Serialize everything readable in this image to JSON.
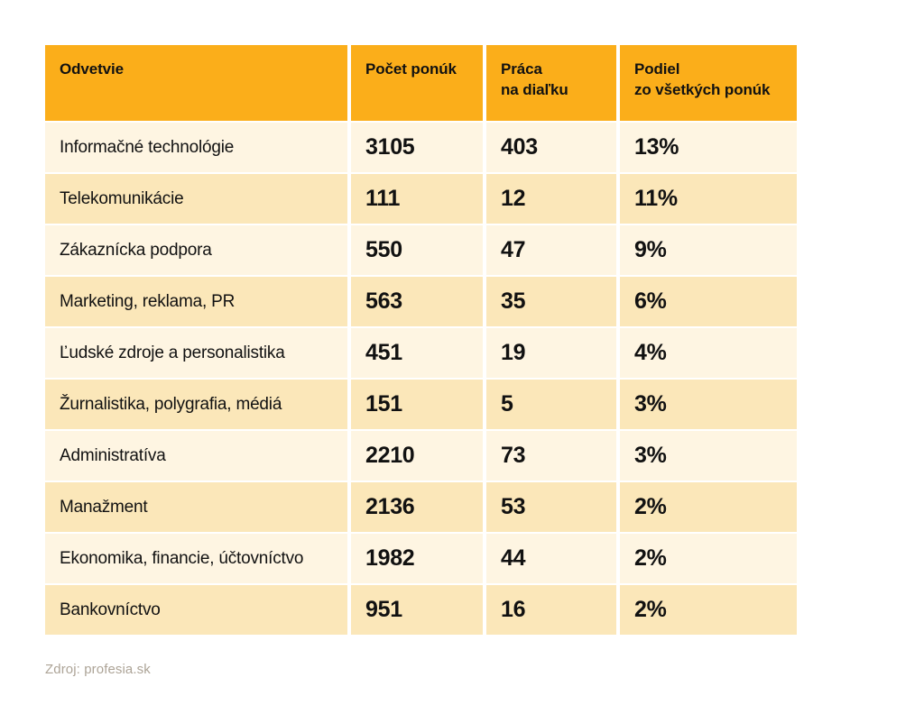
{
  "chart_data": {
    "type": "table",
    "columns": [
      "Odvetvie",
      "Počet ponúk",
      "Práca na diaľku",
      "Podiel zo všetkých ponúk"
    ],
    "column_display": [
      "Odvetvie",
      "Počet ponúk",
      "Práca\nna diaľku",
      "Podiel\nzo všetkých ponúk"
    ],
    "rows": [
      [
        "Informačné technológie",
        3105,
        403,
        "13%"
      ],
      [
        "Telekomunikácie",
        111,
        12,
        "11%"
      ],
      [
        "Zákaznícka podpora",
        550,
        47,
        "9%"
      ],
      [
        "Marketing, reklama, PR",
        563,
        35,
        "6%"
      ],
      [
        "Ľudské zdroje a personalistika",
        451,
        19,
        "4%"
      ],
      [
        "Žurnalistika, polygrafia, médiá",
        151,
        5,
        "3%"
      ],
      [
        "Administratíva",
        2210,
        73,
        "3%"
      ],
      [
        "Manažment",
        2136,
        53,
        "2%"
      ],
      [
        "Ekonomika, financie, účtovníctvo",
        1982,
        44,
        "2%"
      ],
      [
        "Bankovníctvo",
        951,
        16,
        "2%"
      ]
    ]
  },
  "footer": {
    "source": "Zdroj: profesia.sk"
  },
  "colors": {
    "page_bg": "#FFFFFF",
    "header_bg": "#FBAE1A",
    "row_light": "#FEF5E2",
    "row_dark": "#FBE7B9",
    "text": "#111111",
    "source_text": "#ADA497"
  }
}
